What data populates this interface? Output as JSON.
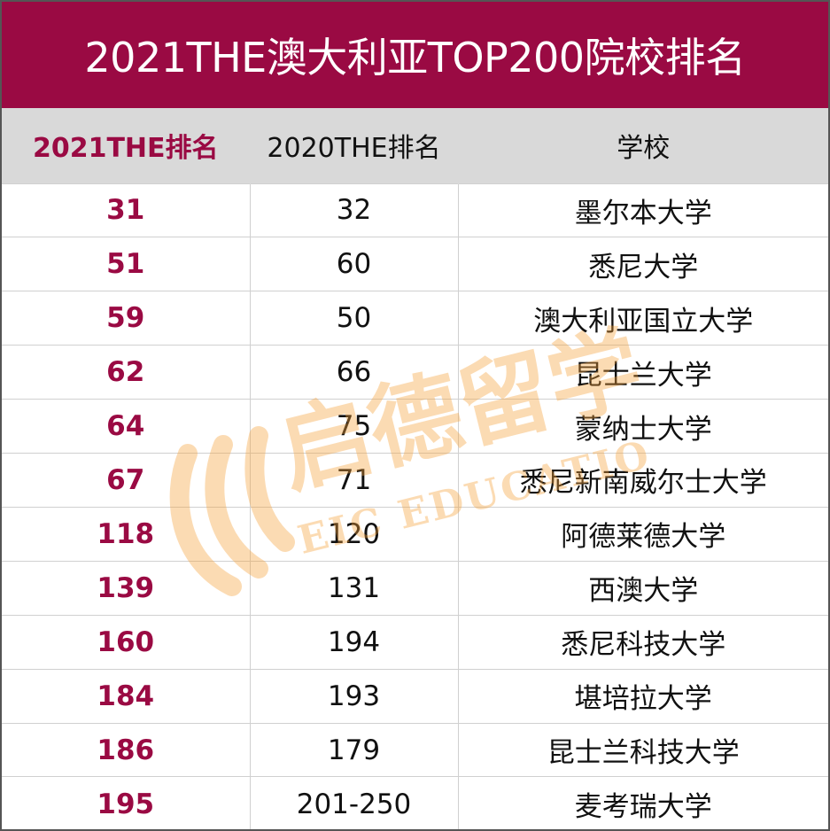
{
  "title": "2021THE澳大利亚TOP200院校排名",
  "headers": {
    "rank_2021": "2021THE排名",
    "rank_2020": "2020THE排名",
    "school": "学校"
  },
  "rows": [
    {
      "rank_2021": "31",
      "rank_2020": "32",
      "school": "墨尔本大学"
    },
    {
      "rank_2021": "51",
      "rank_2020": "60",
      "school": "悉尼大学"
    },
    {
      "rank_2021": "59",
      "rank_2020": "50",
      "school": "澳大利亚国立大学"
    },
    {
      "rank_2021": "62",
      "rank_2020": "66",
      "school": "昆士兰大学"
    },
    {
      "rank_2021": "64",
      "rank_2020": "75",
      "school": "蒙纳士大学"
    },
    {
      "rank_2021": "67",
      "rank_2020": "71",
      "school": "悉尼新南威尔士大学"
    },
    {
      "rank_2021": "118",
      "rank_2020": "120",
      "school": "阿德莱德大学"
    },
    {
      "rank_2021": "139",
      "rank_2020": "131",
      "school": "西澳大学"
    },
    {
      "rank_2021": "160",
      "rank_2020": "194",
      "school": "悉尼科技大学"
    },
    {
      "rank_2021": "184",
      "rank_2020": "193",
      "school": "堪培拉大学"
    },
    {
      "rank_2021": "186",
      "rank_2020": "179",
      "school": "昆士兰科技大学"
    },
    {
      "rank_2021": "195",
      "rank_2020": "201-250",
      "school": "麦考瑞大学"
    }
  ],
  "watermark": {
    "brand_cn": "启德留学",
    "brand_en": "EIC EDUCATION",
    "color": "#f7a13a"
  },
  "colors": {
    "accent": "#9a0a43",
    "header_bg": "#d9d9d9"
  }
}
